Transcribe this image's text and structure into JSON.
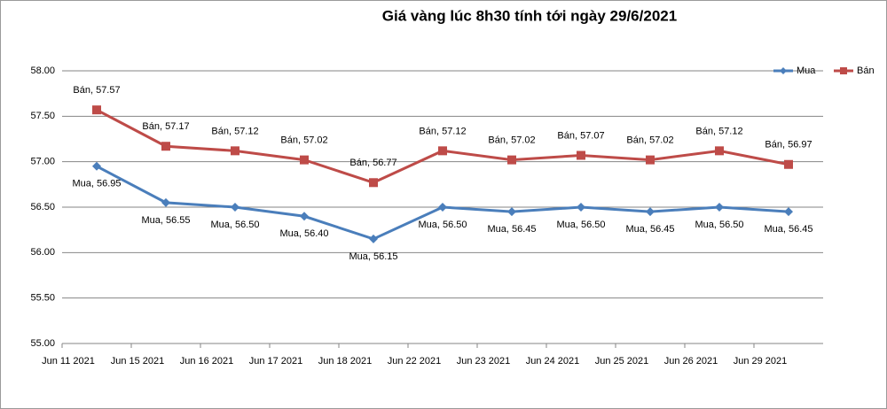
{
  "chart_data": {
    "type": "line",
    "title": "Giá vàng lúc 8h30 tính tới ngày 29/6/2021",
    "categories": [
      "Jun 11 2021",
      "Jun 15 2021",
      "Jun 16 2021",
      "Jun 17 2021",
      "Jun 18 2021",
      "Jun 22 2021",
      "Jun 23 2021",
      "Jun 24 2021",
      "Jun 25 2021",
      "Jun 26 2021",
      "Jun 29 2021"
    ],
    "series": [
      {
        "name": "Mua",
        "color": "#4a7ebb",
        "values": [
          56.95,
          56.55,
          56.5,
          56.4,
          56.15,
          56.5,
          56.45,
          56.5,
          56.45,
          56.5,
          56.45
        ],
        "value_labels": [
          "Mua, 56.95",
          "Mua, 56.55",
          "Mua, 56.50",
          "Mua, 56.40",
          "Mua, 56.15",
          "Mua, 56.50",
          "Mua, 56.45",
          "Mua, 56.50",
          "Mua, 56.45",
          "Mua, 56.50",
          "Mua, 56.45"
        ]
      },
      {
        "name": "Bán",
        "color": "#be4b48",
        "values": [
          57.57,
          57.17,
          57.12,
          57.02,
          56.77,
          57.12,
          57.02,
          57.07,
          57.02,
          57.12,
          56.97
        ],
        "value_labels": [
          "Bán, 57.57",
          "Bán, 57.17",
          "Bán, 57.12",
          "Bán, 57.02",
          "Bán, 56.77",
          "Bán, 57.12",
          "Bán, 57.02",
          "Bán, 57.07",
          "Bán, 57.02",
          "Bán, 57.12",
          "Bán, 56.97"
        ]
      }
    ],
    "ylim": [
      55,
      58
    ],
    "yticks": [
      {
        "value": 55,
        "label": "55.00"
      },
      {
        "value": 55.5,
        "label": "55.50"
      },
      {
        "value": 56,
        "label": "56.00"
      },
      {
        "value": 56.5,
        "label": "56.50"
      },
      {
        "value": 57,
        "label": "57.00"
      },
      {
        "value": 57.5,
        "label": "57.50"
      },
      {
        "value": 58,
        "label": "58.00"
      }
    ],
    "grid": true,
    "legend": "top-right"
  }
}
